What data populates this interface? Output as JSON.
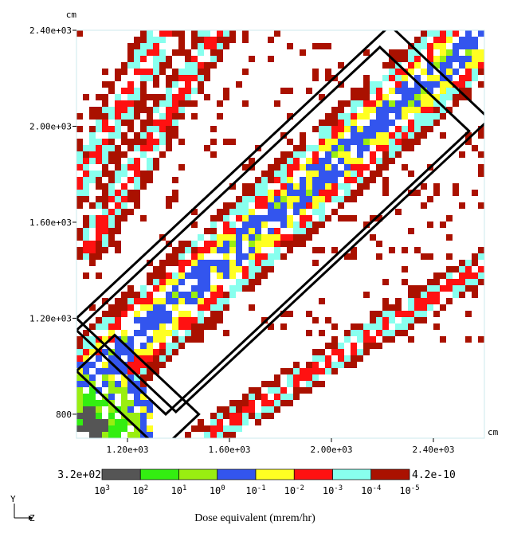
{
  "chart_data": {
    "type": "heatmap",
    "title": "",
    "xlabel": "",
    "ylabel": "",
    "x_unit": "cm",
    "y_unit": "cm",
    "xlim": [
      1000,
      2600
    ],
    "ylim": [
      700,
      2400
    ],
    "x_ticks": [
      1200,
      1600,
      2000,
      2400
    ],
    "x_tick_labels": [
      "1.20e+03",
      "1.60e+03",
      "2.00e+03",
      "2.40e+03"
    ],
    "y_ticks": [
      800,
      1200,
      1600,
      2000,
      2400
    ],
    "y_tick_labels": [
      "800",
      "1.20e+03",
      "1.60e+03",
      "2.00e+03",
      "2.40e+03"
    ],
    "grid": false,
    "colorbar": {
      "title": "Dose equivalent (mrem/hr)",
      "max_label": "3.2e+02",
      "min_label": "4.2e-10",
      "colors": [
        "#555555",
        "#33ee11",
        "#99ee11",
        "#3355ee",
        "#ffff22",
        "#ff1111",
        "#88ffee",
        "#aa1100"
      ],
      "tick_bases": [
        "10",
        "10",
        "10",
        "10",
        "10",
        "10",
        "10",
        "10",
        "10"
      ],
      "tick_exponents": [
        "3",
        "2",
        "1",
        "0",
        "-1",
        "-2",
        "-3",
        "-4",
        "-5"
      ]
    },
    "beam_bands": [
      {
        "name": "main",
        "from": [
          1000,
          900
        ],
        "to": [
          2600,
          2400
        ],
        "width": 60
      },
      {
        "name": "lower",
        "from": [
          1500,
          700
        ],
        "to": [
          2600,
          1420
        ],
        "width": 45
      },
      {
        "name": "upper-left-1",
        "from": [
          1000,
          1750
        ],
        "to": [
          1350,
          2400
        ],
        "width": 55
      },
      {
        "name": "upper-left-2",
        "from": [
          1050,
          1500
        ],
        "to": [
          1550,
          2400
        ],
        "width": 50
      }
    ],
    "structures": [
      {
        "name": "outer-shield-rect",
        "corners": [
          [
            1000,
            1200
          ],
          [
            2230,
            2420
          ],
          [
            2620,
            2030
          ],
          [
            1390,
            810
          ]
        ]
      },
      {
        "name": "inner-shield-rect",
        "corners": [
          [
            1000,
            1150
          ],
          [
            2190,
            2330
          ],
          [
            2540,
            1980
          ],
          [
            1350,
            800
          ]
        ]
      },
      {
        "name": "lower-left-block",
        "corners": [
          [
            1000,
            980
          ],
          [
            1150,
            1130
          ],
          [
            1480,
            800
          ],
          [
            1330,
            650
          ]
        ]
      }
    ],
    "axis_indicator": {
      "vertical": "Y",
      "horizontal": "Z"
    }
  }
}
